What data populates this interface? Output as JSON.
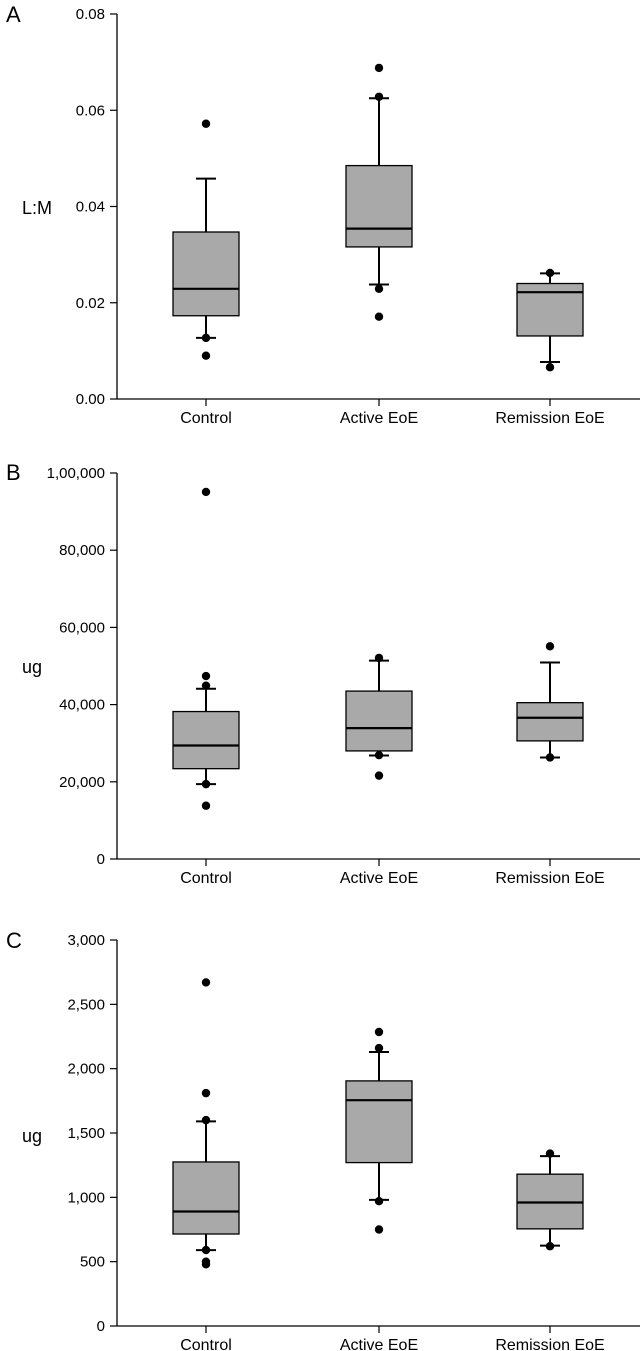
{
  "colors": {
    "box_fill": "#a9a9a9",
    "stroke": "#000000",
    "background": "#ffffff"
  },
  "chart_data": [
    {
      "type": "box",
      "panel_label": "A",
      "ylabel": "L:M",
      "xlabel": "",
      "categories": [
        "Control",
        "Active EoE",
        "Remission EoE"
      ],
      "ylim": [
        0,
        0.08
      ],
      "yticks": [
        0,
        0.02,
        0.04,
        0.06,
        0.08
      ],
      "ytick_labels": [
        "0.00",
        "0.02",
        "0.04",
        "0.06",
        "0.08"
      ],
      "boxes": [
        {
          "category": "Control",
          "whisker_low": 0.0127,
          "q1": 0.0173,
          "median": 0.0229,
          "q3": 0.0347,
          "whisker_high": 0.0458,
          "outliers": [
            0.009,
            0.0127,
            0.0572
          ]
        },
        {
          "category": "Active EoE",
          "whisker_low": 0.0238,
          "q1": 0.0316,
          "median": 0.0354,
          "q3": 0.0485,
          "whisker_high": 0.0625,
          "outliers": [
            0.0171,
            0.0229,
            0.0628,
            0.0688
          ]
        },
        {
          "category": "Remission EoE",
          "whisker_low": 0.0077,
          "q1": 0.0131,
          "median": 0.0222,
          "q3": 0.024,
          "whisker_high": 0.0261,
          "outliers": [
            0.0066,
            0.0262
          ]
        }
      ],
      "grid": false,
      "legend": "none"
    },
    {
      "type": "box",
      "panel_label": "B",
      "ylabel": "ug",
      "xlabel": "",
      "categories": [
        "Control",
        "Active EoE",
        "Remission EoE"
      ],
      "ylim": [
        0,
        100000
      ],
      "yticks": [
        0,
        20000,
        40000,
        60000,
        80000,
        100000
      ],
      "ytick_labels": [
        "0",
        "20,000",
        "40,000",
        "60,000",
        "80,000",
        "1,00,000"
      ],
      "boxes": [
        {
          "category": "Control",
          "whisker_low": 19400,
          "q1": 23400,
          "median": 29400,
          "q3": 38200,
          "whisker_high": 44100,
          "outliers": [
            13800,
            19400,
            44900,
            47400,
            95100
          ]
        },
        {
          "category": "Active EoE",
          "whisker_low": 26800,
          "q1": 28000,
          "median": 33900,
          "q3": 43500,
          "whisker_high": 51400,
          "outliers": [
            21600,
            26900,
            52100
          ]
        },
        {
          "category": "Remission EoE",
          "whisker_low": 26300,
          "q1": 30600,
          "median": 36600,
          "q3": 40500,
          "whisker_high": 50900,
          "outliers": [
            26300,
            55100
          ]
        }
      ],
      "grid": false,
      "legend": "none"
    },
    {
      "type": "box",
      "panel_label": "C",
      "ylabel": "ug",
      "xlabel": "",
      "categories": [
        "Control",
        "Active EoE",
        "Remission EoE"
      ],
      "ylim": [
        0,
        3000
      ],
      "yticks": [
        0,
        500,
        1000,
        1500,
        2000,
        2500,
        3000
      ],
      "ytick_labels": [
        "0",
        "500",
        "1,000",
        "1,500",
        "2,000",
        "2,500",
        "3,000"
      ],
      "boxes": [
        {
          "category": "Control",
          "whisker_low": 590,
          "q1": 715,
          "median": 890,
          "q3": 1275,
          "whisker_high": 1590,
          "outliers": [
            480,
            500,
            590,
            1600,
            1810,
            2670
          ]
        },
        {
          "category": "Active EoE",
          "whisker_low": 980,
          "q1": 1270,
          "median": 1755,
          "q3": 1905,
          "whisker_high": 2130,
          "outliers": [
            750,
            970,
            2160,
            2285
          ]
        },
        {
          "category": "Remission EoE",
          "whisker_low": 625,
          "q1": 755,
          "median": 960,
          "q3": 1180,
          "whisker_high": 1320,
          "outliers": [
            620,
            1340
          ]
        }
      ],
      "grid": false,
      "legend": "none"
    }
  ]
}
